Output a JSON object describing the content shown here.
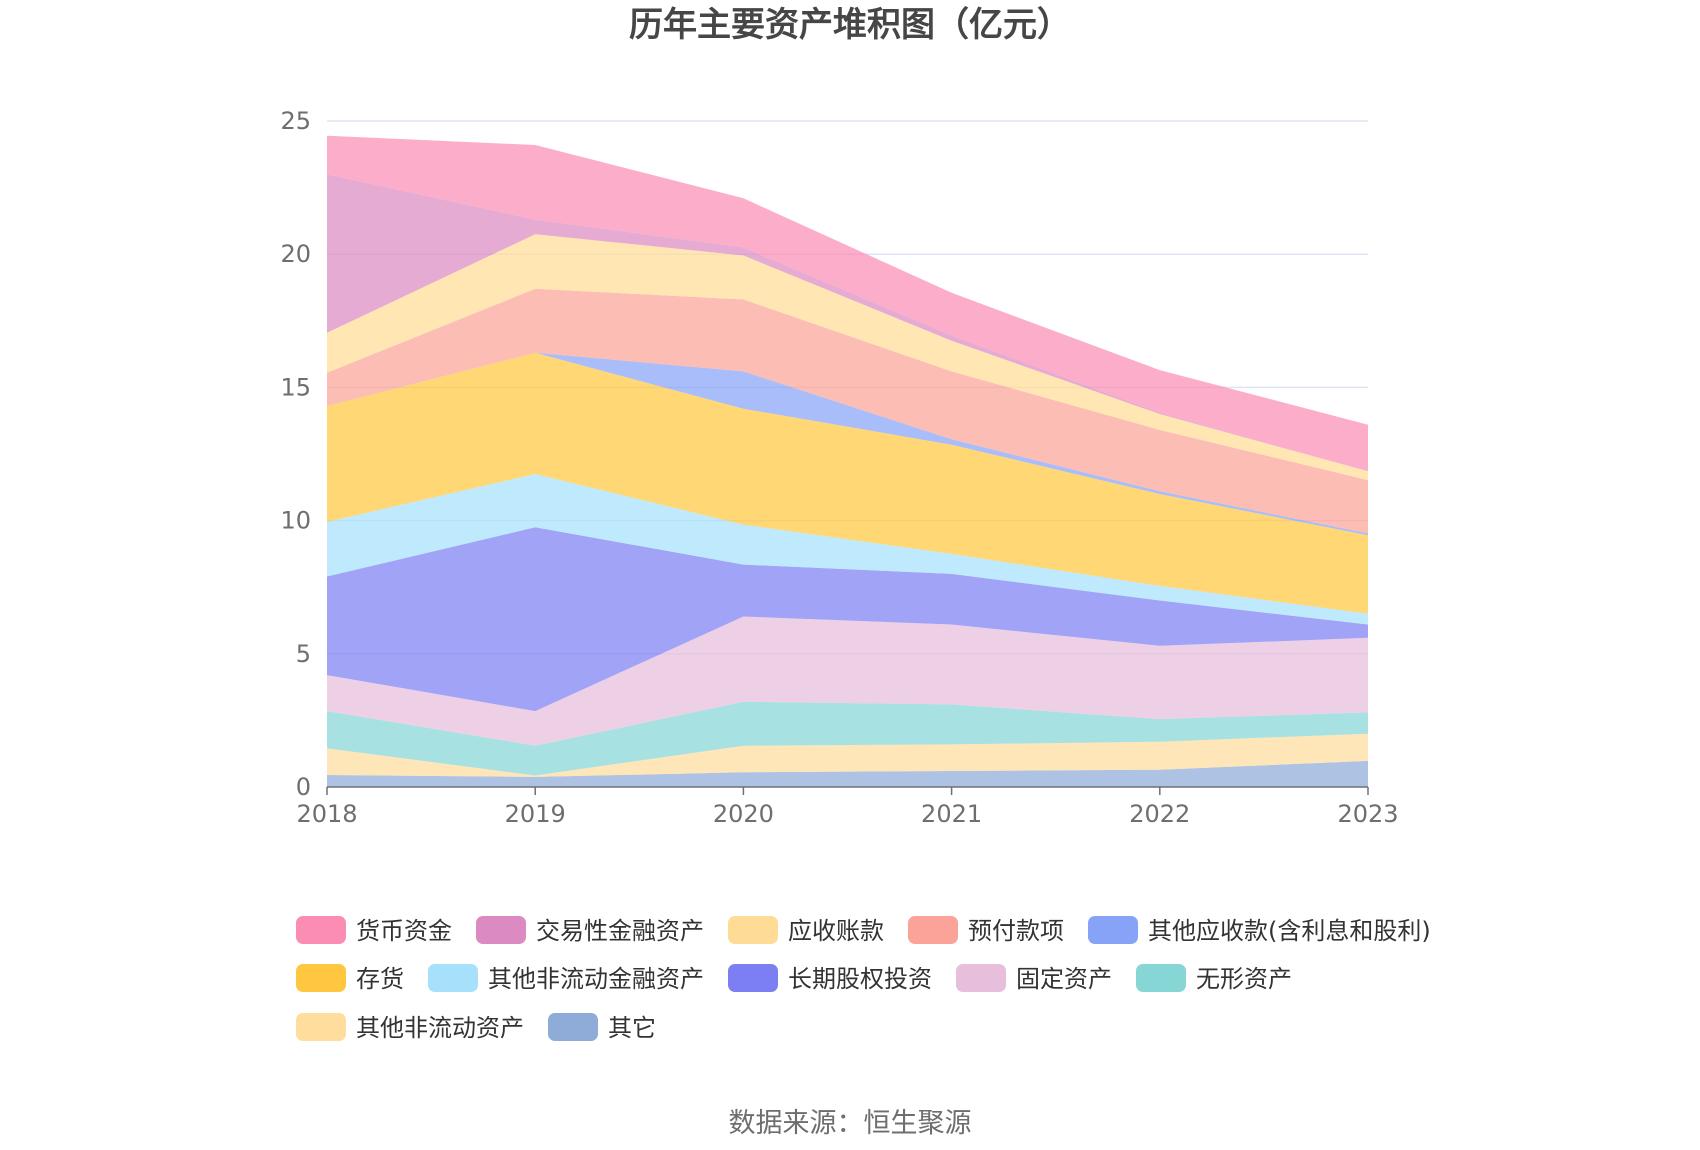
{
  "chart_data": {
    "type": "area",
    "stacked": true,
    "title": "历年主要资产堆积图（亿元）",
    "x": [
      "2018",
      "2019",
      "2020",
      "2021",
      "2022",
      "2023"
    ],
    "ylim": [
      0,
      25
    ],
    "yticks": [
      0,
      5,
      10,
      15,
      20,
      25
    ],
    "grid": true,
    "legend_position": "bottom",
    "series": [
      {
        "name": "其它",
        "color": "#8facd9",
        "values": [
          0.45,
          0.38,
          0.55,
          0.6,
          0.65,
          0.98
        ]
      },
      {
        "name": "其他非流动资产",
        "color": "#ffdd9c",
        "values": [
          1.0,
          0.05,
          1.0,
          1.0,
          1.05,
          1.02
        ]
      },
      {
        "name": "无形资产",
        "color": "#86d6d6",
        "values": [
          1.4,
          1.12,
          1.65,
          1.5,
          0.85,
          0.8
        ]
      },
      {
        "name": "固定资产",
        "color": "#e8bedd",
        "values": [
          1.35,
          1.3,
          3.2,
          3.0,
          2.75,
          2.8
        ]
      },
      {
        "name": "长期股权投资",
        "color": "#7b7ff2",
        "values": [
          3.7,
          6.9,
          1.95,
          1.9,
          1.7,
          0.5
        ]
      },
      {
        "name": "其他非流动金融资产",
        "color": "#a6e0fb",
        "values": [
          2.05,
          2.0,
          1.5,
          0.75,
          0.55,
          0.4
        ]
      },
      {
        "name": "存货",
        "color": "#ffc740",
        "values": [
          4.35,
          4.55,
          4.35,
          4.1,
          3.45,
          2.95
        ]
      },
      {
        "name": "其他应收款(含利息和股利)",
        "color": "#86a3f7",
        "values": [
          0.0,
          0.0,
          1.4,
          0.2,
          0.1,
          0.07
        ]
      },
      {
        "name": "预付款项",
        "color": "#fba398",
        "values": [
          1.25,
          2.4,
          2.7,
          2.55,
          2.3,
          2.0
        ]
      },
      {
        "name": "应收账款",
        "color": "#ffdc96",
        "values": [
          1.5,
          2.05,
          1.65,
          1.15,
          0.6,
          0.33
        ]
      },
      {
        "name": "交易性金融资产",
        "color": "#dc8ac2",
        "values": [
          5.95,
          0.55,
          0.3,
          0.2,
          0.05,
          0.0
        ]
      },
      {
        "name": "货币资金",
        "color": "#fb8db4",
        "values": [
          1.45,
          2.8,
          1.85,
          1.6,
          1.6,
          1.75
        ]
      }
    ],
    "legend_order": [
      "货币资金",
      "交易性金融资产",
      "应收账款",
      "预付款项",
      "其他应收款(含利息和股利)",
      "存货",
      "其他非流动金融资产",
      "长期股权投资",
      "固定资产",
      "无形资产",
      "其他非流动资产",
      "其它"
    ]
  },
  "source": "数据来源：恒生聚源"
}
